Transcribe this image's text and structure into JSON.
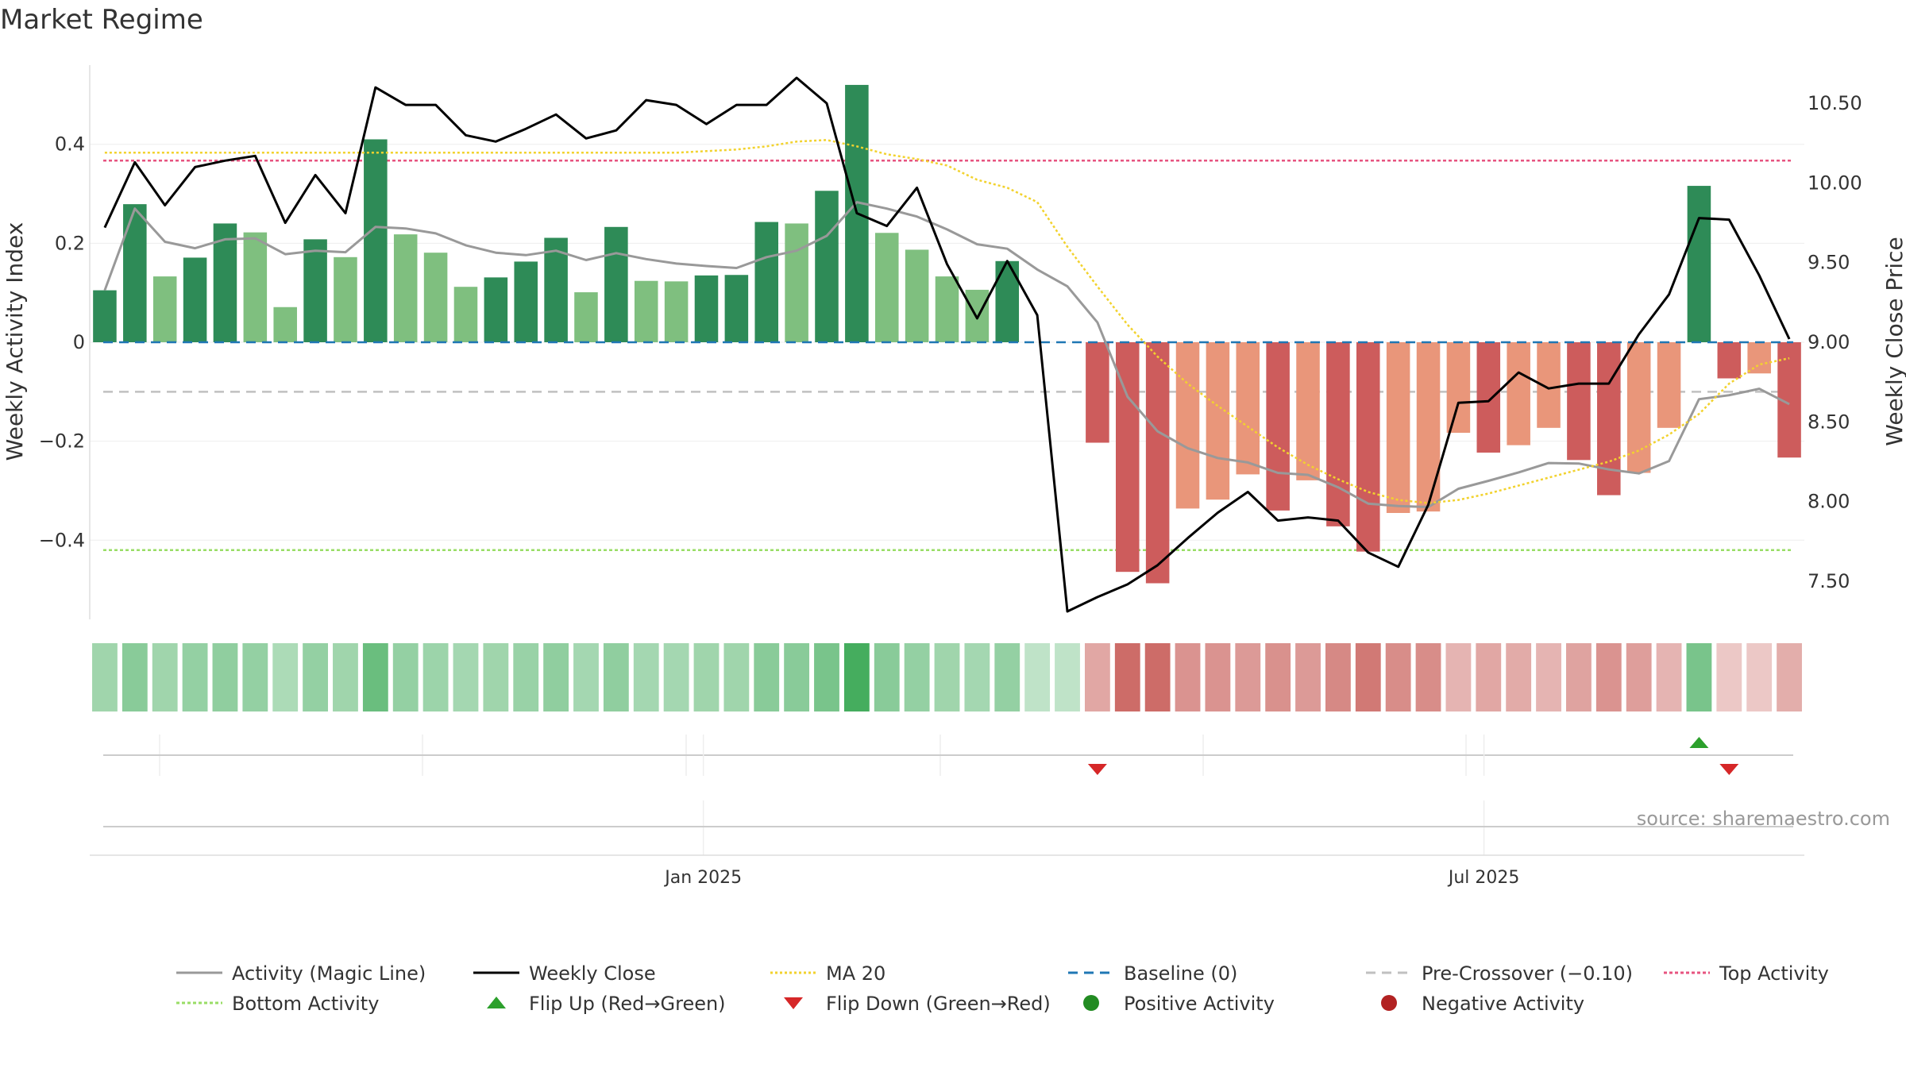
{
  "page": {
    "title": "Market Regime"
  },
  "chart_data": {
    "type": "bar",
    "title": "Market Regime",
    "source": "source: sharemaestro.com",
    "ylabel_left": "Weekly Activity Index",
    "ylabel_right": "Weekly Close Price",
    "left_axis": {
      "ylim": [
        -0.56,
        0.56
      ],
      "ticks": [
        0.4,
        0.2,
        0,
        -0.2,
        -0.4
      ],
      "tick_labels": [
        "0.4",
        "0.2",
        "0",
        "−0.2",
        "−0.4"
      ]
    },
    "right_axis": {
      "ylim": [
        7.26,
        10.74
      ],
      "ticks": [
        10.5,
        10.0,
        9.5,
        9.0,
        8.5,
        8.0,
        7.5
      ],
      "tick_labels": [
        "10.50",
        "10.00",
        "9.50",
        "9.00",
        "8.50",
        "8.00",
        "7.50"
      ]
    },
    "x_ticks": [
      {
        "label": "Jan 2025",
        "index": 19.9
      },
      {
        "label": "Jul 2025",
        "index": 45.85
      }
    ],
    "activity": [
      0.105,
      0.279,
      0.133,
      0.171,
      0.24,
      0.222,
      0.071,
      0.208,
      0.172,
      0.41,
      0.218,
      0.181,
      0.112,
      0.131,
      0.163,
      0.211,
      0.101,
      0.233,
      0.124,
      0.123,
      0.135,
      0.136,
      0.243,
      0.24,
      0.306,
      0.52,
      0.221,
      0.187,
      0.133,
      0.106,
      0.164,
      0,
      0,
      -0.203,
      -0.464,
      -0.487,
      -0.336,
      -0.318,
      -0.267,
      -0.34,
      -0.279,
      -0.372,
      -0.423,
      -0.345,
      -0.342,
      -0.183,
      -0.223,
      -0.208,
      -0.173,
      -0.238,
      -0.309,
      -0.264,
      -0.173,
      0.316,
      -0.073,
      -0.063,
      -0.233
    ],
    "strong": [
      1,
      1,
      0,
      1,
      1,
      0,
      0,
      1,
      0,
      1,
      0,
      0,
      0,
      1,
      1,
      1,
      0,
      1,
      0,
      0,
      1,
      1,
      1,
      0,
      1,
      1,
      0,
      0,
      0,
      0,
      1,
      0,
      0,
      1,
      1,
      1,
      0,
      0,
      0,
      1,
      0,
      1,
      1,
      0,
      0,
      0,
      1,
      0,
      0,
      1,
      1,
      0,
      0,
      1,
      1,
      0,
      1
    ],
    "magic_line": [
      0.105,
      0.27,
      0.203,
      0.19,
      0.208,
      0.21,
      0.178,
      0.185,
      0.182,
      0.233,
      0.23,
      0.22,
      0.196,
      0.181,
      0.176,
      0.185,
      0.166,
      0.18,
      0.168,
      0.159,
      0.154,
      0.15,
      0.172,
      0.185,
      0.215,
      0.283,
      0.27,
      0.254,
      0.228,
      0.198,
      0.189,
      0.147,
      0.113,
      0.04,
      -0.11,
      -0.18,
      -0.214,
      -0.234,
      -0.243,
      -0.264,
      -0.268,
      -0.293,
      -0.326,
      -0.331,
      -0.333,
      -0.296,
      -0.28,
      -0.263,
      -0.244,
      -0.245,
      -0.257,
      -0.265,
      -0.24,
      -0.115,
      -0.107,
      -0.094,
      -0.125
    ],
    "weekly_close": [
      9.72,
      10.13,
      9.86,
      10.1,
      10.14,
      10.17,
      9.75,
      10.05,
      9.81,
      10.6,
      10.49,
      10.49,
      10.3,
      10.26,
      10.34,
      10.43,
      10.28,
      10.33,
      10.52,
      10.49,
      10.37,
      10.49,
      10.49,
      10.66,
      10.5,
      9.81,
      9.73,
      9.97,
      9.49,
      9.15,
      9.51,
      9.17,
      7.31,
      7.4,
      7.48,
      7.6,
      7.77,
      7.93,
      8.06,
      7.88,
      7.9,
      7.88,
      7.68,
      7.59,
      7.98,
      8.62,
      8.63,
      8.81,
      8.71,
      8.74,
      8.74,
      9.05,
      9.3,
      9.78,
      9.77,
      9.42,
      9.02
    ],
    "ma20": [
      10.19,
      10.19,
      10.19,
      10.19,
      10.19,
      10.19,
      10.19,
      10.19,
      10.19,
      10.19,
      10.19,
      10.19,
      10.19,
      10.19,
      10.19,
      10.19,
      10.19,
      10.19,
      10.19,
      10.19,
      10.2,
      10.21,
      10.23,
      10.26,
      10.27,
      10.23,
      10.18,
      10.15,
      10.11,
      10.02,
      9.97,
      9.88,
      9.6,
      9.35,
      9.11,
      8.91,
      8.74,
      8.6,
      8.47,
      8.34,
      8.23,
      8.14,
      8.06,
      8.01,
      7.99,
      8.01,
      8.05,
      8.1,
      8.15,
      8.2,
      8.25,
      8.32,
      8.42,
      8.55,
      8.74,
      8.86,
      8.9
    ],
    "reference_lines": {
      "baseline": 0,
      "pre_crossover": -0.1,
      "top_activity": 0.367,
      "bottom_activity": -0.42
    },
    "heat_strip": [
      0.38,
      0.52,
      0.38,
      0.45,
      0.48,
      0.45,
      0.3,
      0.45,
      0.38,
      0.72,
      0.45,
      0.4,
      0.35,
      0.38,
      0.42,
      0.48,
      0.35,
      0.48,
      0.35,
      0.35,
      0.38,
      0.38,
      0.52,
      0.52,
      0.62,
      0.95,
      0.52,
      0.45,
      0.38,
      0.35,
      0.45,
      0.18,
      0.18,
      0.45,
      0.9,
      0.9,
      0.6,
      0.6,
      0.55,
      0.62,
      0.55,
      0.68,
      0.8,
      0.65,
      0.65,
      0.35,
      0.45,
      0.42,
      0.35,
      0.48,
      0.6,
      0.52,
      0.35,
      0.62,
      0.2,
      0.2,
      0.4
    ],
    "flip_markers": [
      {
        "type": "down",
        "index": 33
      },
      {
        "type": "up",
        "index": 53
      },
      {
        "type": "down",
        "index": 54
      }
    ],
    "colors": {
      "strong_green": "#2e8b57",
      "light_green": "#7fbf7f",
      "strong_red": "#cd5c5c",
      "light_red": "#e9967a",
      "magic_line": "#999999",
      "weekly_close": "#000000",
      "ma20": "#f2d22e",
      "baseline": "#1f77b4",
      "pre_crossover": "#c0c0c0",
      "top_activity": "#e75480",
      "bottom_activity": "#99dd66",
      "flip_up": "#2ca02c",
      "flip_down": "#d62728",
      "positive_dot": "#228b22",
      "negative_dot": "#b22222"
    },
    "legend": [
      {
        "label": "Activity (Magic Line)",
        "kind": "line",
        "key": "magic_line",
        "dash": ""
      },
      {
        "label": "Weekly Close",
        "kind": "line",
        "key": "weekly_close",
        "dash": ""
      },
      {
        "label": "MA 20",
        "kind": "line",
        "key": "ma20",
        "dash": "3 3"
      },
      {
        "label": "Baseline (0)",
        "kind": "line",
        "key": "baseline",
        "dash": "12 8"
      },
      {
        "label": "Pre-Crossover (−0.10)",
        "kind": "line",
        "key": "pre_crossover",
        "dash": "12 8"
      },
      {
        "label": "Top Activity",
        "kind": "line",
        "key": "top_activity",
        "dash": "4 3"
      },
      {
        "label": "Bottom Activity",
        "kind": "line",
        "key": "bottom_activity",
        "dash": "4 3"
      },
      {
        "label": "Flip Up (Red→Green)",
        "kind": "tri_up",
        "key": "flip_up",
        "dash": ""
      },
      {
        "label": "Flip Down (Green→Red)",
        "kind": "tri_down",
        "key": "flip_down",
        "dash": ""
      },
      {
        "label": "Positive Activity",
        "kind": "dot",
        "key": "positive_dot",
        "dash": ""
      },
      {
        "label": "Negative Activity",
        "kind": "dot",
        "key": "negative_dot",
        "dash": ""
      }
    ]
  }
}
